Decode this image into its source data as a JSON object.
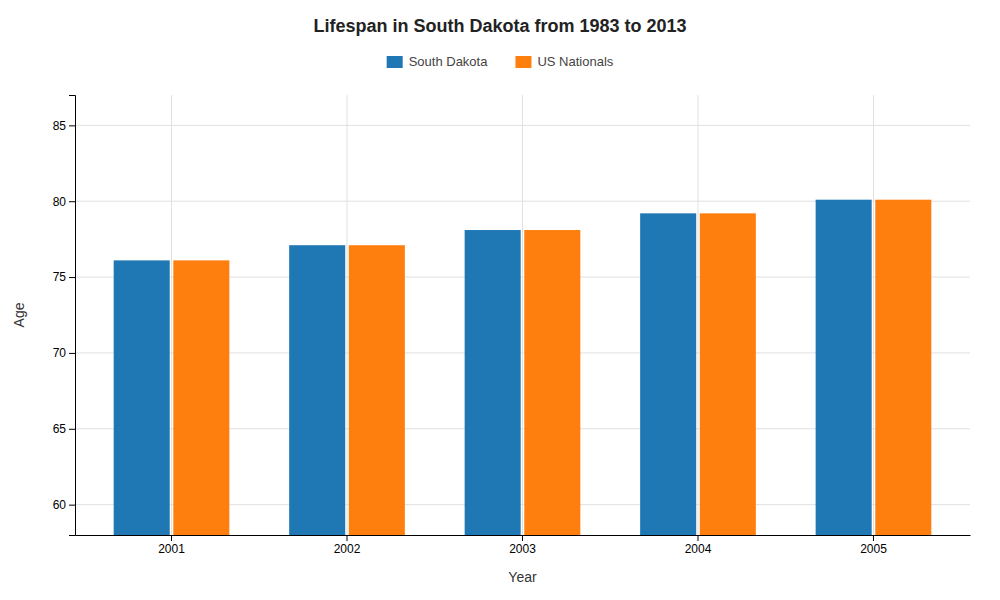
{
  "chart_data": {
    "type": "bar",
    "title": "Lifespan in South Dakota from 1983 to 2013",
    "xlabel": "Year",
    "ylabel": "Age",
    "categories": [
      "2001",
      "2002",
      "2003",
      "2004",
      "2005"
    ],
    "series": [
      {
        "name": "South Dakota",
        "values": [
          76.1,
          77.1,
          78.1,
          79.2,
          80.1
        ]
      },
      {
        "name": "US Nationals",
        "values": [
          76.1,
          77.1,
          78.1,
          79.2,
          80.1
        ]
      }
    ],
    "ylim": [
      58,
      87
    ],
    "yticks": [
      60,
      65,
      70,
      75,
      80,
      85
    ],
    "grid": true,
    "legend": "top"
  }
}
